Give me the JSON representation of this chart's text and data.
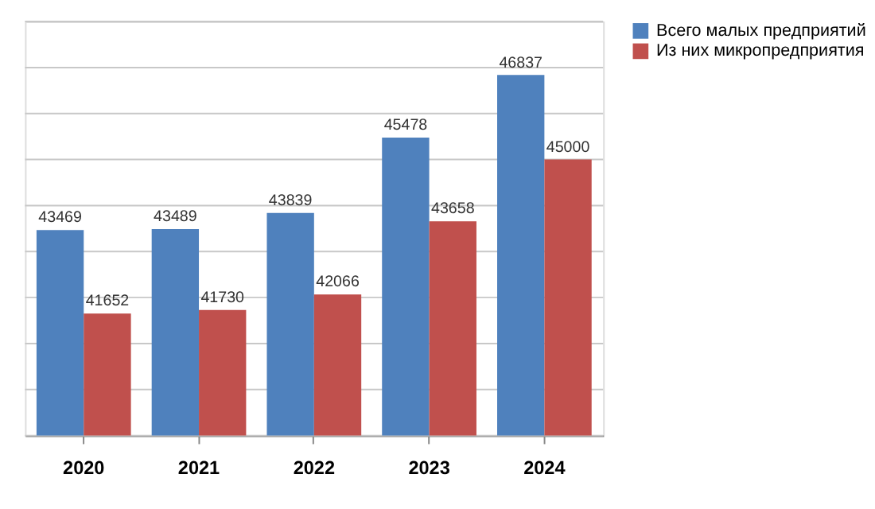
{
  "chart_data": {
    "type": "bar",
    "categories": [
      "2020",
      "2021",
      "2022",
      "2023",
      "2024"
    ],
    "series": [
      {
        "name": "Всего малых предприятий",
        "color": "#4f81bd",
        "values": [
          43469,
          43489,
          43839,
          45478,
          46837
        ]
      },
      {
        "name": "Из них микропредприятия",
        "color": "#c0504d",
        "values": [
          41652,
          41730,
          42066,
          43658,
          45000
        ]
      }
    ],
    "ylim": [
      39000,
      48000
    ],
    "yticks": [
      {
        "value": 39000,
        "label": null
      },
      {
        "value": 40000,
        "label": null
      },
      {
        "value": 41000,
        "label": null
      },
      {
        "value": 42000,
        "label": null
      },
      {
        "value": 43000,
        "label": null
      },
      {
        "value": 44000,
        "label": null
      },
      {
        "value": 45000,
        "label": null
      },
      {
        "value": 46000,
        "label": null
      },
      {
        "value": 47000,
        "label": null
      },
      {
        "value": 48000,
        "label": null
      }
    ],
    "tick_labels": "x",
    "grid": "y",
    "data_labels": true,
    "legend": "right"
  }
}
